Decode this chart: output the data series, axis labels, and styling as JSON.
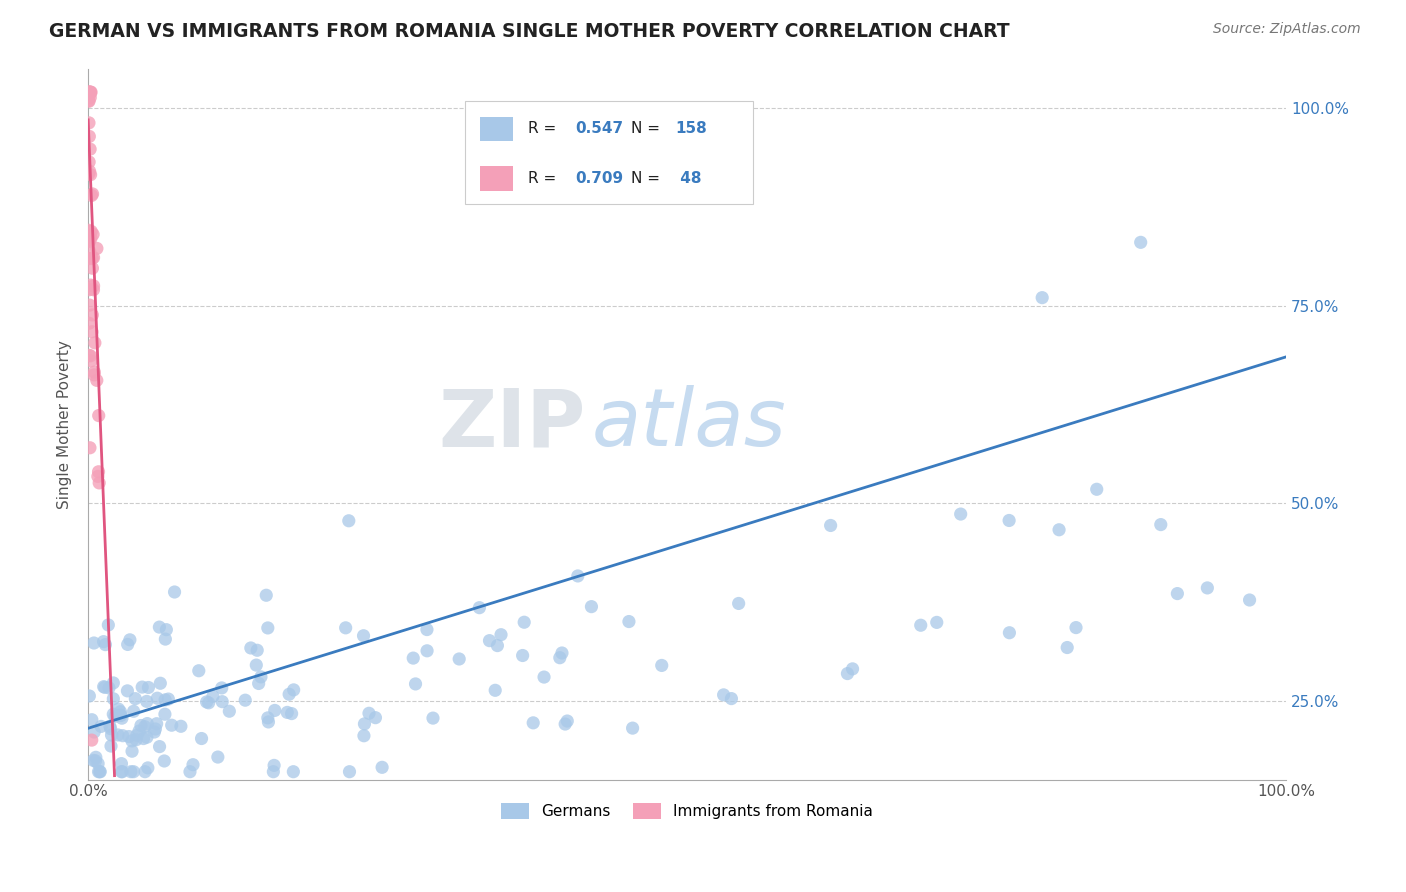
{
  "title": "GERMAN VS IMMIGRANTS FROM ROMANIA SINGLE MOTHER POVERTY CORRELATION CHART",
  "source": "Source: ZipAtlas.com",
  "ylabel": "Single Mother Poverty",
  "blue_R": 0.547,
  "blue_N": 158,
  "pink_R": 0.709,
  "pink_N": 48,
  "blue_color": "#a8c8e8",
  "pink_color": "#f4a0b8",
  "blue_line_color": "#3a7bbf",
  "pink_line_color": "#e05580",
  "legend_labels": [
    "Germans",
    "Immigrants from Romania"
  ],
  "watermark_zip": "ZIP",
  "watermark_atlas": "atlas",
  "xlim": [
    0.0,
    1.0
  ],
  "ylim": [
    0.15,
    1.05
  ],
  "yticks": [
    0.25,
    0.5,
    0.75,
    1.0
  ],
  "ytick_labels": [
    "25.0%",
    "50.0%",
    "75.0%",
    "100.0%"
  ],
  "blue_line_x": [
    0.0,
    1.0
  ],
  "blue_line_y": [
    0.215,
    0.685
  ],
  "pink_line_x": [
    0.0,
    0.022
  ],
  "pink_line_y": [
    0.985,
    0.155
  ]
}
